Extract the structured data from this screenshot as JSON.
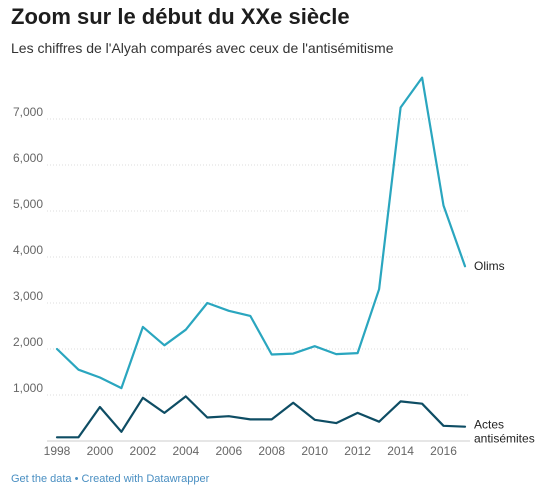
{
  "title": "Zoom sur le début du XXe siècle",
  "subtitle": "Les chiffres de l'Alyah comparés avec ceux de l'antisémitisme",
  "footer": {
    "get_data": "Get the data",
    "separator": "•",
    "created_with": "Created with Datawrapper"
  },
  "colors": {
    "olims": "#2aa6bf",
    "actes": "#0e4d64",
    "grid": "#dddddd",
    "link": "#4a8fc2"
  },
  "chart_data": {
    "type": "line",
    "x": [
      1998,
      1999,
      2000,
      2001,
      2002,
      2003,
      2004,
      2005,
      2006,
      2007,
      2008,
      2009,
      2010,
      2011,
      2012,
      2013,
      2014,
      2015,
      2016,
      2017
    ],
    "series": [
      {
        "name": "Olims",
        "values": [
          2000,
          1550,
          1380,
          1150,
          2480,
          2080,
          2420,
          3000,
          2830,
          2720,
          1880,
          1900,
          2060,
          1890,
          1910,
          3300,
          7250,
          7900,
          5120,
          3800
        ]
      },
      {
        "name": "Actes antisémites",
        "label_lines": [
          "Actes",
          "antisémites"
        ],
        "values": [
          80,
          80,
          740,
          200,
          940,
          610,
          970,
          510,
          540,
          470,
          470,
          830,
          460,
          390,
          610,
          420,
          860,
          810,
          330,
          310
        ]
      }
    ],
    "y_ticks": [
      1000,
      2000,
      3000,
      4000,
      5000,
      6000,
      7000
    ],
    "y_tick_labels": [
      "1,000",
      "2,000",
      "3,000",
      "4,000",
      "5,000",
      "6,000",
      "7,000"
    ],
    "x_ticks": [
      1998,
      2000,
      2002,
      2004,
      2006,
      2008,
      2010,
      2012,
      2014,
      2016
    ],
    "x_tick_labels": [
      "1998",
      "2000",
      "2002",
      "2004",
      "2006",
      "2008",
      "2010",
      "2012",
      "2014",
      "2016"
    ],
    "ylim": [
      0,
      7900
    ],
    "xlim": [
      1998,
      2017
    ],
    "grid": true
  }
}
